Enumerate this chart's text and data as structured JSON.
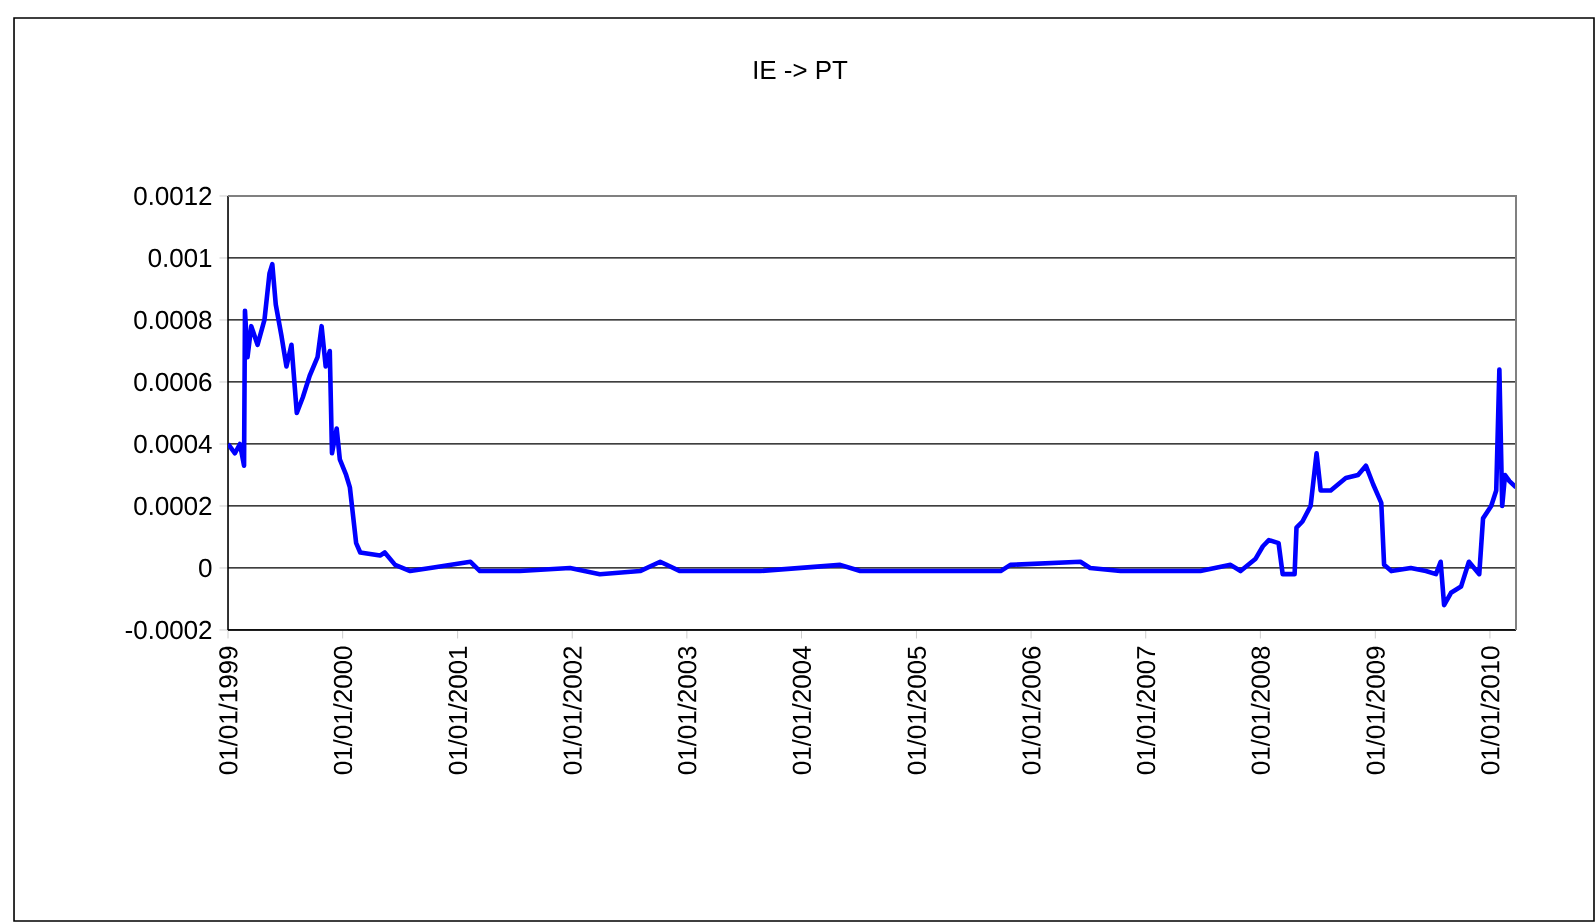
{
  "chart_data": {
    "type": "line",
    "title": "IE -> PT",
    "x": [
      "1999-01-01",
      "1999-01-23",
      "1999-02-08",
      "1999-02-21",
      "1999-02-24",
      "1999-03-04",
      "1999-03-16",
      "1999-04-05",
      "1999-04-27",
      "1999-05-13",
      "1999-05-22",
      "1999-06-02",
      "1999-06-20",
      "1999-07-06",
      "1999-07-22",
      "1999-08-08",
      "1999-08-27",
      "1999-09-18",
      "1999-10-13",
      "1999-10-26",
      "1999-11-08",
      "1999-11-21",
      "1999-11-28",
      "1999-12-13",
      "1999-12-23",
      "2000-01-12",
      "2000-01-24",
      "2000-02-13",
      "2000-02-26",
      "2000-04-29",
      "2000-05-14",
      "2000-06-16",
      "2000-08-03",
      "2000-10-06",
      "2001-02-11",
      "2001-03-13",
      "2001-07-18",
      "2001-12-25",
      "2002-03-30",
      "2002-08-05",
      "2002-10-08",
      "2002-12-10",
      "2003-08-22",
      "2004-05-03",
      "2004-07-06",
      "2005-09-26",
      "2005-10-27",
      "2006-06-07",
      "2006-07-08",
      "2006-10-13",
      "2007-06-24",
      "2007-09-28",
      "2007-10-30",
      "2007-12-17",
      "2008-01-09",
      "2008-01-28",
      "2008-02-28",
      "2008-03-12",
      "2008-04-19",
      "2008-04-25",
      "2008-05-14",
      "2008-06-09",
      "2008-06-28",
      "2008-07-11",
      "2008-08-12",
      "2008-09-29",
      "2008-11-07",
      "2008-12-02",
      "2008-12-25",
      "2009-01-20",
      "2009-01-29",
      "2009-02-21",
      "2009-04-24",
      "2009-06-11",
      "2009-07-13",
      "2009-07-28",
      "2009-08-08",
      "2009-08-30",
      "2009-10-01",
      "2009-10-26",
      "2009-11-28",
      "2009-12-10",
      "2010-01-05",
      "2010-01-21",
      "2010-01-31",
      "2010-02-09",
      "2010-02-18",
      "2010-03-04",
      "2010-03-25"
    ],
    "series": [
      {
        "color": "#0000ff",
        "values": [
          0.0004,
          0.00037,
          0.0004,
          0.00033,
          0.00083,
          0.00068,
          0.00078,
          0.00072,
          0.0008,
          0.00095,
          0.00098,
          0.00085,
          0.00075,
          0.00065,
          0.00072,
          0.0005,
          0.00055,
          0.00062,
          0.00068,
          0.00078,
          0.00065,
          0.0007,
          0.00037,
          0.00045,
          0.00035,
          0.0003,
          0.00026,
          8e-05,
          5e-05,
          4e-05,
          5e-05,
          1e-05,
          -1e-05,
          0,
          2e-05,
          -1e-05,
          -1e-05,
          0,
          -2e-05,
          -1e-05,
          2e-05,
          -1e-05,
          -1e-05,
          1e-05,
          -1e-05,
          -1e-05,
          1e-05,
          2e-05,
          0,
          -1e-05,
          -1e-05,
          1e-05,
          -1e-05,
          3e-05,
          7e-05,
          9e-05,
          8e-05,
          -2e-05,
          -2e-05,
          0.00013,
          0.00015,
          0.0002,
          0.00037,
          0.00025,
          0.00025,
          0.00029,
          0.0003,
          0.00033,
          0.00027,
          0.00021,
          1e-05,
          -1e-05,
          0,
          -1e-05,
          -2e-05,
          2e-05,
          -0.00012,
          -8e-05,
          -6e-05,
          2e-05,
          -2e-05,
          0.00016,
          0.0002,
          0.00025,
          0.00064,
          0.0002,
          0.0003,
          0.00028,
          0.00026
        ]
      }
    ],
    "xlim": [
      "1999-01-01",
      "2010-03-25"
    ],
    "xticks": [
      {
        "value": "1999-01-01",
        "label": "01/01/1999"
      },
      {
        "value": "2000-01-01",
        "label": "01/01/2000"
      },
      {
        "value": "2001-01-01",
        "label": "01/01/2001"
      },
      {
        "value": "2002-01-01",
        "label": "01/01/2002"
      },
      {
        "value": "2003-01-01",
        "label": "01/01/2003"
      },
      {
        "value": "2004-01-01",
        "label": "01/01/2004"
      },
      {
        "value": "2005-01-01",
        "label": "01/01/2005"
      },
      {
        "value": "2006-01-01",
        "label": "01/01/2006"
      },
      {
        "value": "2007-01-01",
        "label": "01/01/2007"
      },
      {
        "value": "2008-01-01",
        "label": "01/01/2008"
      },
      {
        "value": "2009-01-01",
        "label": "01/01/2009"
      },
      {
        "value": "2010-01-01",
        "label": "01/01/2010"
      }
    ],
    "ylim": [
      -0.0002,
      0.0012
    ],
    "yticks": [
      -0.0002,
      0,
      0.0002,
      0.0004,
      0.0006,
      0.0008,
      0.001,
      0.0012
    ],
    "grid": "y"
  }
}
